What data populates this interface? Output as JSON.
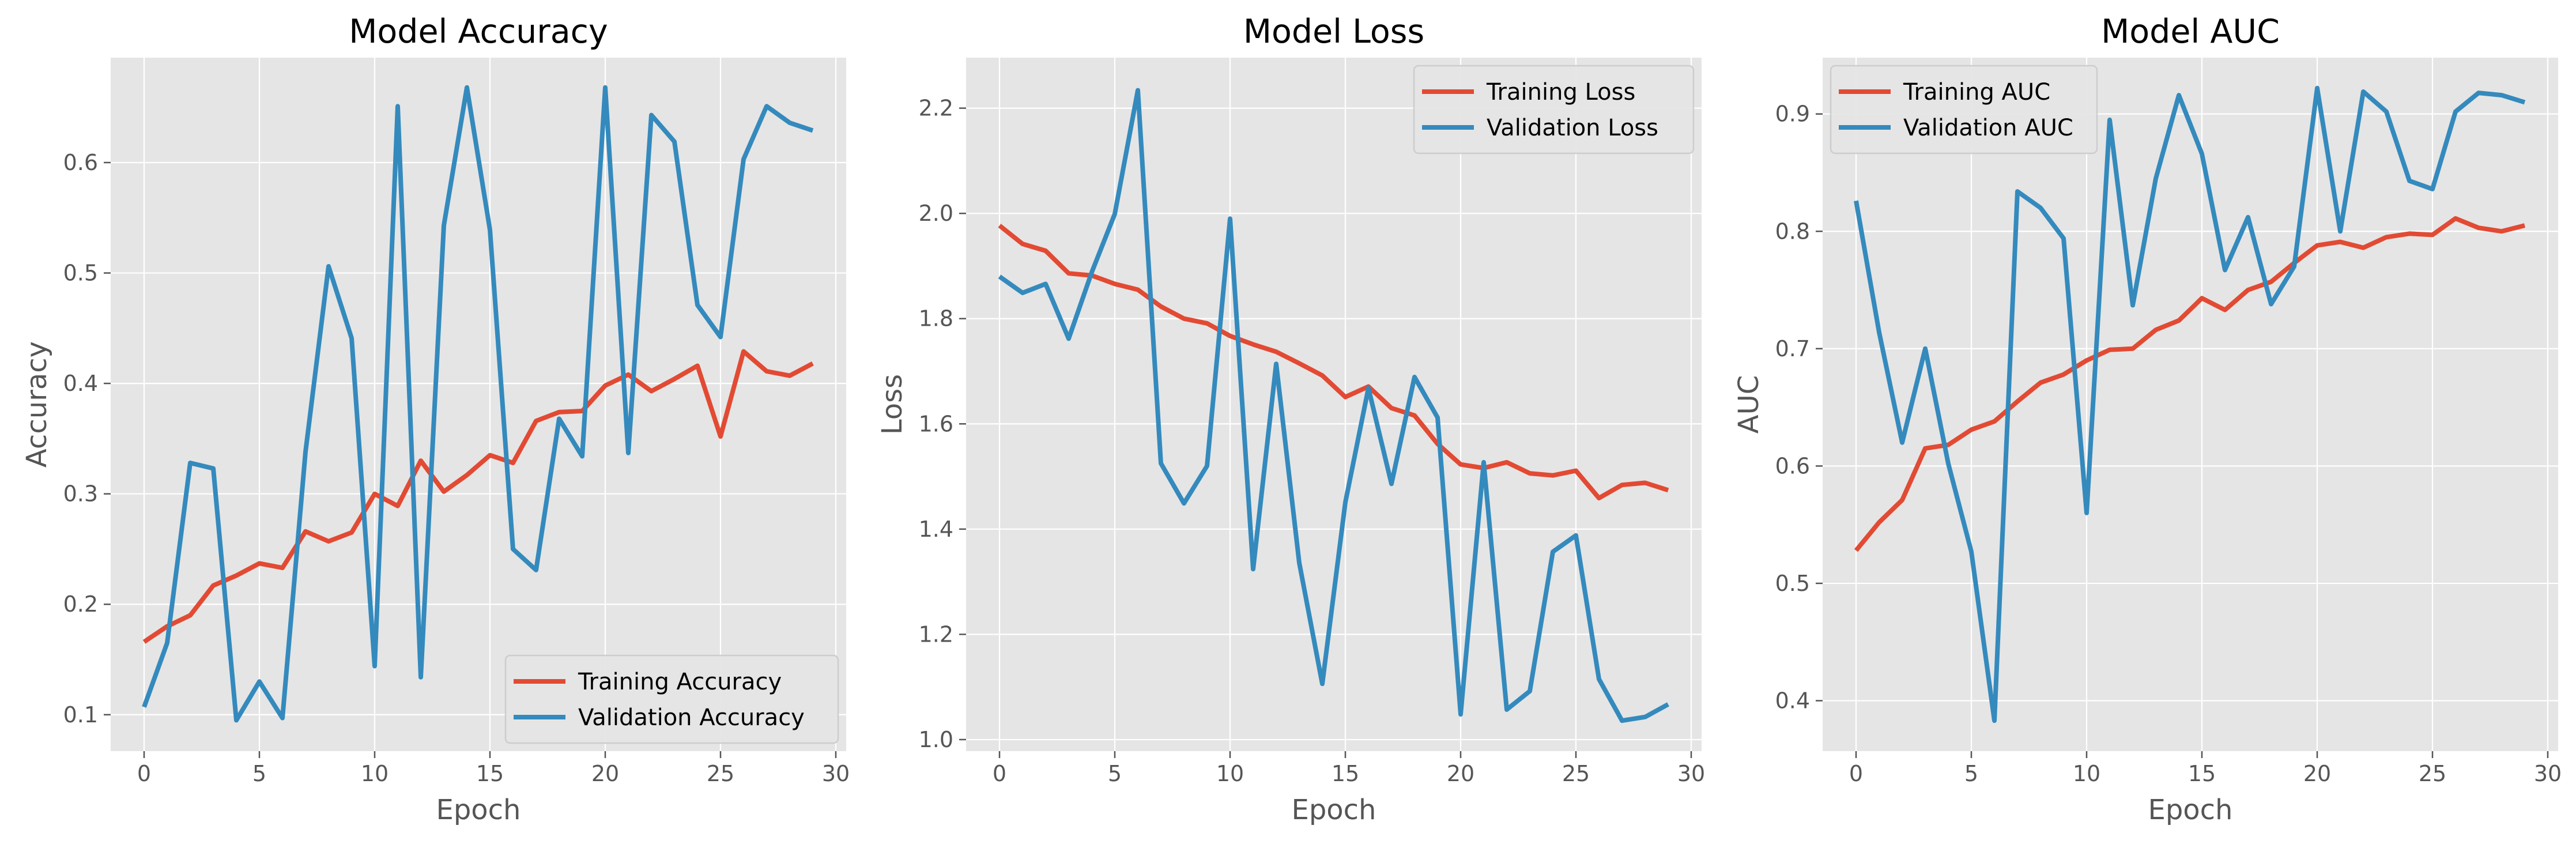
{
  "colors": {
    "training": "#e24a33",
    "validation": "#348abd"
  },
  "chart_data": [
    {
      "type": "line",
      "title": "Model Accuracy",
      "xlabel": "Epoch",
      "ylabel": "Accuracy",
      "xlim": [
        -1.45,
        30.45
      ],
      "ylim": [
        0.067,
        0.695
      ],
      "xticks": [
        0,
        5,
        10,
        15,
        20,
        25,
        30
      ],
      "yticks": [
        0.1,
        0.2,
        0.3,
        0.4,
        0.5,
        0.6
      ],
      "tick_labels_y": [
        "0.1",
        "0.2",
        "0.3",
        "0.4",
        "0.5",
        "0.6"
      ],
      "legend_position": "lower right",
      "grid": true,
      "x": [
        0,
        1,
        2,
        3,
        4,
        5,
        6,
        7,
        8,
        9,
        10,
        11,
        12,
        13,
        14,
        15,
        16,
        17,
        18,
        19,
        20,
        21,
        22,
        23,
        24,
        25,
        26,
        27,
        28,
        29
      ],
      "series": [
        {
          "name": "Training Accuracy",
          "color_key": "training",
          "values": [
            0.166,
            0.18,
            0.19,
            0.217,
            0.226,
            0.237,
            0.233,
            0.266,
            0.257,
            0.265,
            0.3,
            0.289,
            0.33,
            0.302,
            0.317,
            0.335,
            0.328,
            0.366,
            0.374,
            0.375,
            0.398,
            0.408,
            0.393,
            0.404,
            0.416,
            0.352,
            0.429,
            0.411,
            0.407,
            0.418
          ]
        },
        {
          "name": "Validation Accuracy",
          "color_key": "validation",
          "values": [
            0.107,
            0.165,
            0.328,
            0.323,
            0.095,
            0.13,
            0.097,
            0.338,
            0.506,
            0.441,
            0.144,
            0.651,
            0.134,
            0.543,
            0.668,
            0.539,
            0.25,
            0.231,
            0.368,
            0.334,
            0.668,
            0.337,
            0.643,
            0.619,
            0.471,
            0.442,
            0.603,
            0.651,
            0.636,
            0.629
          ]
        }
      ]
    },
    {
      "type": "line",
      "title": "Model Loss",
      "xlabel": "Epoch",
      "ylabel": "Loss",
      "xlim": [
        -1.45,
        30.45
      ],
      "ylim": [
        0.978,
        2.296
      ],
      "xticks": [
        0,
        5,
        10,
        15,
        20,
        25,
        30
      ],
      "yticks": [
        1.0,
        1.2,
        1.4,
        1.6,
        1.8,
        2.0,
        2.2
      ],
      "tick_labels_y": [
        "1.0",
        "1.2",
        "1.4",
        "1.6",
        "1.8",
        "2.0",
        "2.2"
      ],
      "legend_position": "upper right",
      "grid": true,
      "x": [
        0,
        1,
        2,
        3,
        4,
        5,
        6,
        7,
        8,
        9,
        10,
        11,
        12,
        13,
        14,
        15,
        16,
        17,
        18,
        19,
        20,
        21,
        22,
        23,
        24,
        25,
        26,
        27,
        28,
        29
      ],
      "series": [
        {
          "name": "Training Loss",
          "color_key": "training",
          "values": [
            1.977,
            1.942,
            1.929,
            1.886,
            1.882,
            1.866,
            1.855,
            1.823,
            1.8,
            1.791,
            1.767,
            1.751,
            1.737,
            1.715,
            1.692,
            1.651,
            1.671,
            1.63,
            1.616,
            1.562,
            1.523,
            1.516,
            1.527,
            1.506,
            1.502,
            1.511,
            1.459,
            1.484,
            1.488,
            1.474
          ]
        },
        {
          "name": "Validation Loss",
          "color_key": "validation",
          "values": [
            1.88,
            1.849,
            1.866,
            1.762,
            1.888,
            1.999,
            2.234,
            1.525,
            1.449,
            1.52,
            1.99,
            1.324,
            1.714,
            1.336,
            1.106,
            1.451,
            1.668,
            1.486,
            1.689,
            1.612,
            1.048,
            1.527,
            1.057,
            1.092,
            1.357,
            1.388,
            1.115,
            1.036,
            1.043,
            1.067
          ]
        }
      ]
    },
    {
      "type": "line",
      "title": "Model AUC",
      "xlabel": "Epoch",
      "ylabel": "AUC",
      "xlim": [
        -1.45,
        30.45
      ],
      "ylim": [
        0.357,
        0.948
      ],
      "xticks": [
        0,
        5,
        10,
        15,
        20,
        25,
        30
      ],
      "yticks": [
        0.4,
        0.5,
        0.6,
        0.7,
        0.8,
        0.9
      ],
      "tick_labels_y": [
        "0.4",
        "0.5",
        "0.6",
        "0.7",
        "0.8",
        "0.9"
      ],
      "legend_position": "upper left",
      "grid": true,
      "x": [
        0,
        1,
        2,
        3,
        4,
        5,
        6,
        7,
        8,
        9,
        10,
        11,
        12,
        13,
        14,
        15,
        16,
        17,
        18,
        19,
        20,
        21,
        22,
        23,
        24,
        25,
        26,
        27,
        28,
        29
      ],
      "series": [
        {
          "name": "Training AUC",
          "color_key": "training",
          "values": [
            0.528,
            0.552,
            0.571,
            0.615,
            0.618,
            0.631,
            0.638,
            0.655,
            0.671,
            0.678,
            0.69,
            0.699,
            0.7,
            0.716,
            0.724,
            0.743,
            0.733,
            0.75,
            0.757,
            0.773,
            0.788,
            0.791,
            0.786,
            0.795,
            0.798,
            0.797,
            0.811,
            0.803,
            0.8,
            0.805
          ]
        },
        {
          "name": "Validation AUC",
          "color_key": "validation",
          "values": [
            0.826,
            0.714,
            0.62,
            0.7,
            0.602,
            0.527,
            0.383,
            0.834,
            0.82,
            0.794,
            0.56,
            0.895,
            0.737,
            0.845,
            0.916,
            0.866,
            0.767,
            0.812,
            0.738,
            0.77,
            0.922,
            0.8,
            0.919,
            0.902,
            0.843,
            0.836,
            0.902,
            0.918,
            0.916,
            0.91
          ]
        }
      ]
    }
  ]
}
